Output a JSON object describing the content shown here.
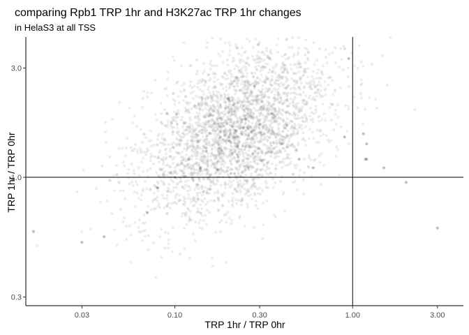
{
  "chart_data": {
    "type": "scatter",
    "title": "comparing Rpb1 TRP 1hr and H3K27ac TRP 1hr changes",
    "subtitle": "in HelaS3 at all TSS",
    "xlabel": "TRP 1hr / TRP 0hr",
    "ylabel": "TRP 1hr / TRP 0hr",
    "x_scale": "log10",
    "y_scale": "log10",
    "xlim": [
      0.0145,
      4.2
    ],
    "ylim": [
      0.275,
      4.1
    ],
    "x_ticks": [
      0.03,
      0.1,
      0.3,
      1.0,
      3.0
    ],
    "x_tick_labels": [
      "0.03",
      "0.10",
      "0.30",
      "1.00",
      "3.00"
    ],
    "y_ticks": [
      0.3,
      1.0,
      3.0
    ],
    "y_tick_labels": [
      "0.3",
      "1.0",
      "3.0"
    ],
    "reference_lines": {
      "vline_x": 1.0,
      "hline_y": 1.0
    },
    "grid": false,
    "legend": "none",
    "point_color": "#000000",
    "point_alpha": 0.07,
    "n_points": 3000,
    "distribution": {
      "center_x": 0.22,
      "center_y": 1.6,
      "log10_sd_x": 0.27,
      "log10_sd_y": 0.19,
      "correlation": 0.45
    },
    "series": [
      {
        "x": [
          0.22,
          0.18,
          0.25,
          0.3,
          0.15,
          0.12,
          0.35,
          0.2,
          0.28,
          0.1,
          0.4,
          0.5,
          0.08,
          0.6,
          0.07,
          0.04,
          0.03,
          0.9,
          1.2,
          1.5,
          2.0,
          3.0,
          0.016,
          1.15,
          1.18,
          1.2,
          0.95
        ],
        "y": [
          1.6,
          1.5,
          1.8,
          1.7,
          1.3,
          1.2,
          1.9,
          2.2,
          2.5,
          1.0,
          1.4,
          1.2,
          0.9,
          1.1,
          0.7,
          0.55,
          0.52,
          1.5,
          1.2,
          1.1,
          0.95,
          0.6,
          0.58,
          1.55,
          1.2,
          1.4,
          3.3
        ]
      }
    ]
  }
}
